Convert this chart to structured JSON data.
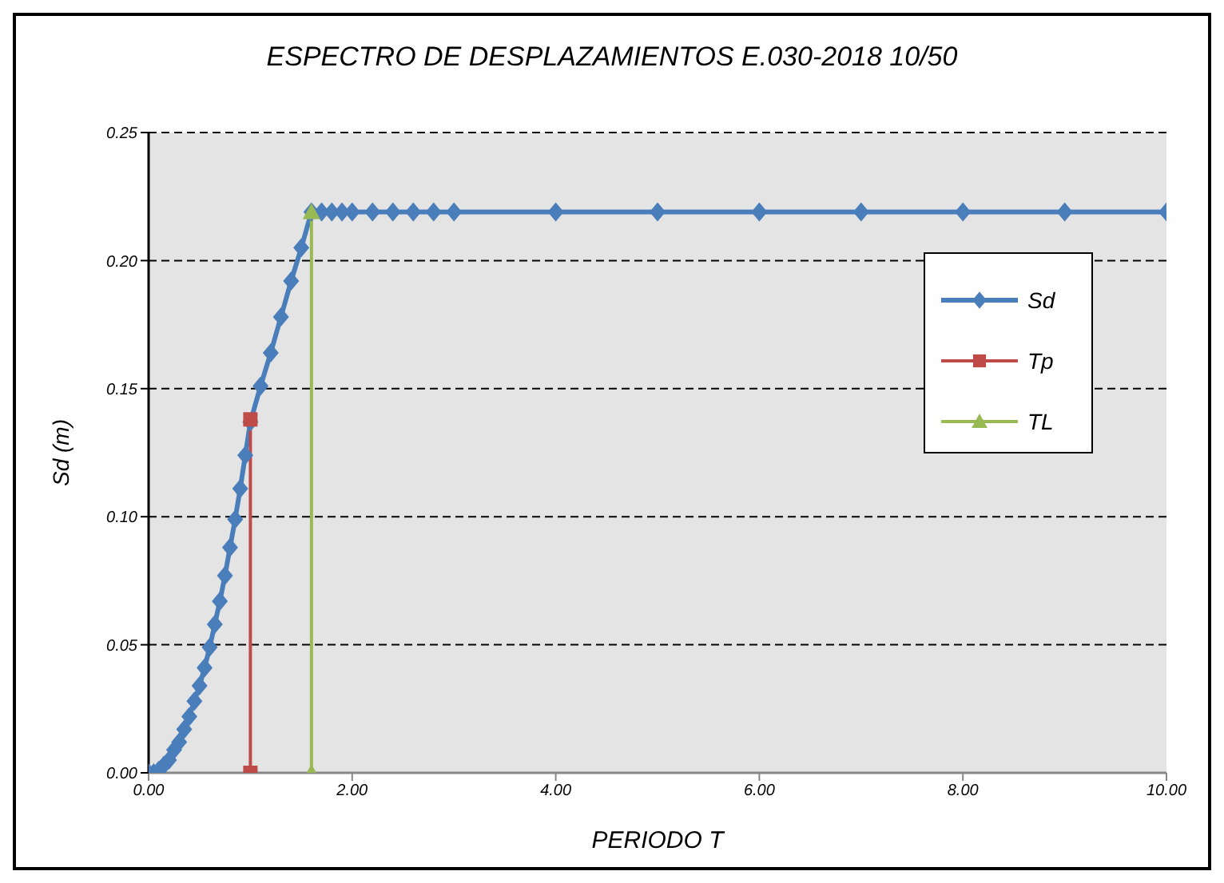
{
  "chart_data": {
    "type": "line",
    "title": "ESPECTRO DE DESPLAZAMIENTOS E.030-2018 10/50",
    "xlabel": "PERIODO T",
    "ylabel": "Sd (m)",
    "series": [
      {
        "name": "Sd",
        "color": "#4a7ebb",
        "marker": "diamond",
        "x": [
          0,
          0.05,
          0.1,
          0.15,
          0.2,
          0.25,
          0.3,
          0.35,
          0.4,
          0.45,
          0.5,
          0.55,
          0.6,
          0.65,
          0.7,
          0.75,
          0.8,
          0.85,
          0.9,
          0.95,
          1.0,
          1.1,
          1.2,
          1.3,
          1.4,
          1.5,
          1.6,
          1.7,
          1.8,
          1.9,
          2.0,
          2.2,
          2.4,
          2.6,
          2.8,
          3.0,
          4,
          5,
          6,
          7,
          8,
          9,
          10
        ],
        "values": [
          0,
          0,
          0.001,
          0.003,
          0.005,
          0.009,
          0.012,
          0.017,
          0.022,
          0.028,
          0.034,
          0.041,
          0.049,
          0.058,
          0.067,
          0.077,
          0.088,
          0.099,
          0.111,
          0.124,
          0.137,
          0.151,
          0.164,
          0.178,
          0.192,
          0.205,
          0.219,
          0.219,
          0.219,
          0.219,
          0.219,
          0.219,
          0.219,
          0.219,
          0.219,
          0.219,
          0.219,
          0.219,
          0.219,
          0.219,
          0.219,
          0.219,
          0.219
        ]
      },
      {
        "name": "Tp",
        "color": "#be4b48",
        "marker": "square",
        "x": [
          1.0,
          1.0
        ],
        "values": [
          0,
          0.138
        ]
      },
      {
        "name": "TL",
        "color": "#98b954",
        "marker": "triangle",
        "x": [
          1.6,
          1.6
        ],
        "values": [
          0,
          0.219
        ]
      }
    ],
    "xlim": [
      0,
      10
    ],
    "xticks": [
      {
        "value": 0,
        "label": "0.00"
      },
      {
        "value": 2,
        "label": "2.00"
      },
      {
        "value": 4,
        "label": "4.00"
      },
      {
        "value": 6,
        "label": "6.00"
      },
      {
        "value": 8,
        "label": "8.00"
      },
      {
        "value": 10,
        "label": "10.00"
      }
    ],
    "ylim": [
      0,
      0.25
    ],
    "yticks": [
      {
        "value": 0,
        "label": "0.00"
      },
      {
        "value": 0.05,
        "label": "0.05"
      },
      {
        "value": 0.1,
        "label": "0.10"
      },
      {
        "value": 0.15,
        "label": "0.15"
      },
      {
        "value": 0.2,
        "label": "0.20"
      },
      {
        "value": 0.25,
        "label": "0.25"
      }
    ],
    "grid": "y",
    "legend": "top right",
    "line_style": "solid"
  }
}
